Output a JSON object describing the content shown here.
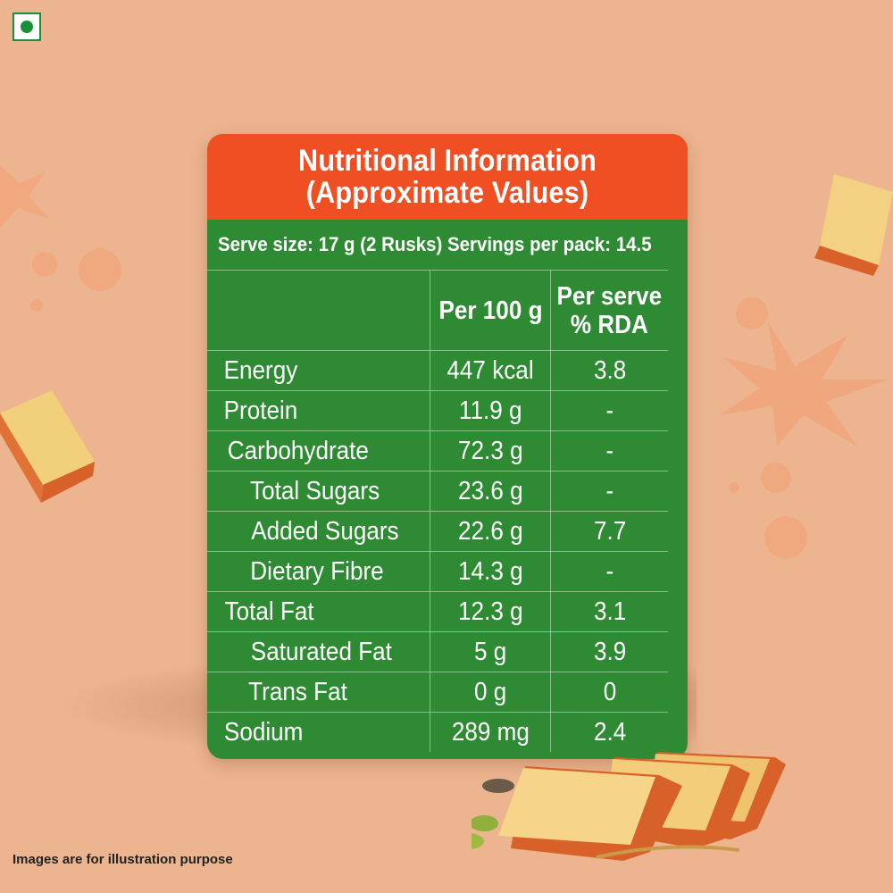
{
  "colors": {
    "background": "#ecb58f",
    "header": "#f04e23",
    "panel": "#2f8a34",
    "veg_mark": "#1a8f3a"
  },
  "icons": {
    "veg_mark": "veg-symbol-icon"
  },
  "header": {
    "line1": "Nutritional Information",
    "line2": "(Approximate Values)"
  },
  "serve_info": "Serve size: 17 g (2 Rusks) Servings per pack: 14.5",
  "table": {
    "columns": {
      "per100": "Per 100 g",
      "rda_line1": "Per serve",
      "rda_line2": "% RDA"
    },
    "rows": [
      {
        "name": "Energy",
        "per100": "447 kcal",
        "rda": "3.8",
        "indent": false
      },
      {
        "name": "Protein",
        "per100": "11.9 g",
        "rda": "-",
        "indent": false
      },
      {
        "name": "Carbohydrate",
        "per100": "72.3 g",
        "rda": "-",
        "indent": false
      },
      {
        "name": "Total Sugars",
        "per100": "23.6 g",
        "rda": "-",
        "indent": true
      },
      {
        "name": "Added Sugars",
        "per100": "22.6 g",
        "rda": "7.7",
        "indent": true
      },
      {
        "name": "Dietary Fibre",
        "per100": "14.3 g",
        "rda": "-",
        "indent": true
      },
      {
        "name": "Total Fat",
        "per100": "12.3 g",
        "rda": "3.1",
        "indent": false
      },
      {
        "name": "Saturated Fat",
        "per100": "5 g",
        "rda": "3.9",
        "indent": true
      },
      {
        "name": "Trans Fat",
        "per100": "0 g",
        "rda": "0",
        "indent": true
      },
      {
        "name": "Sodium",
        "per100": "289 mg",
        "rda": "2.4",
        "indent": false
      }
    ]
  },
  "footnote": "Images are for illustration purpose"
}
